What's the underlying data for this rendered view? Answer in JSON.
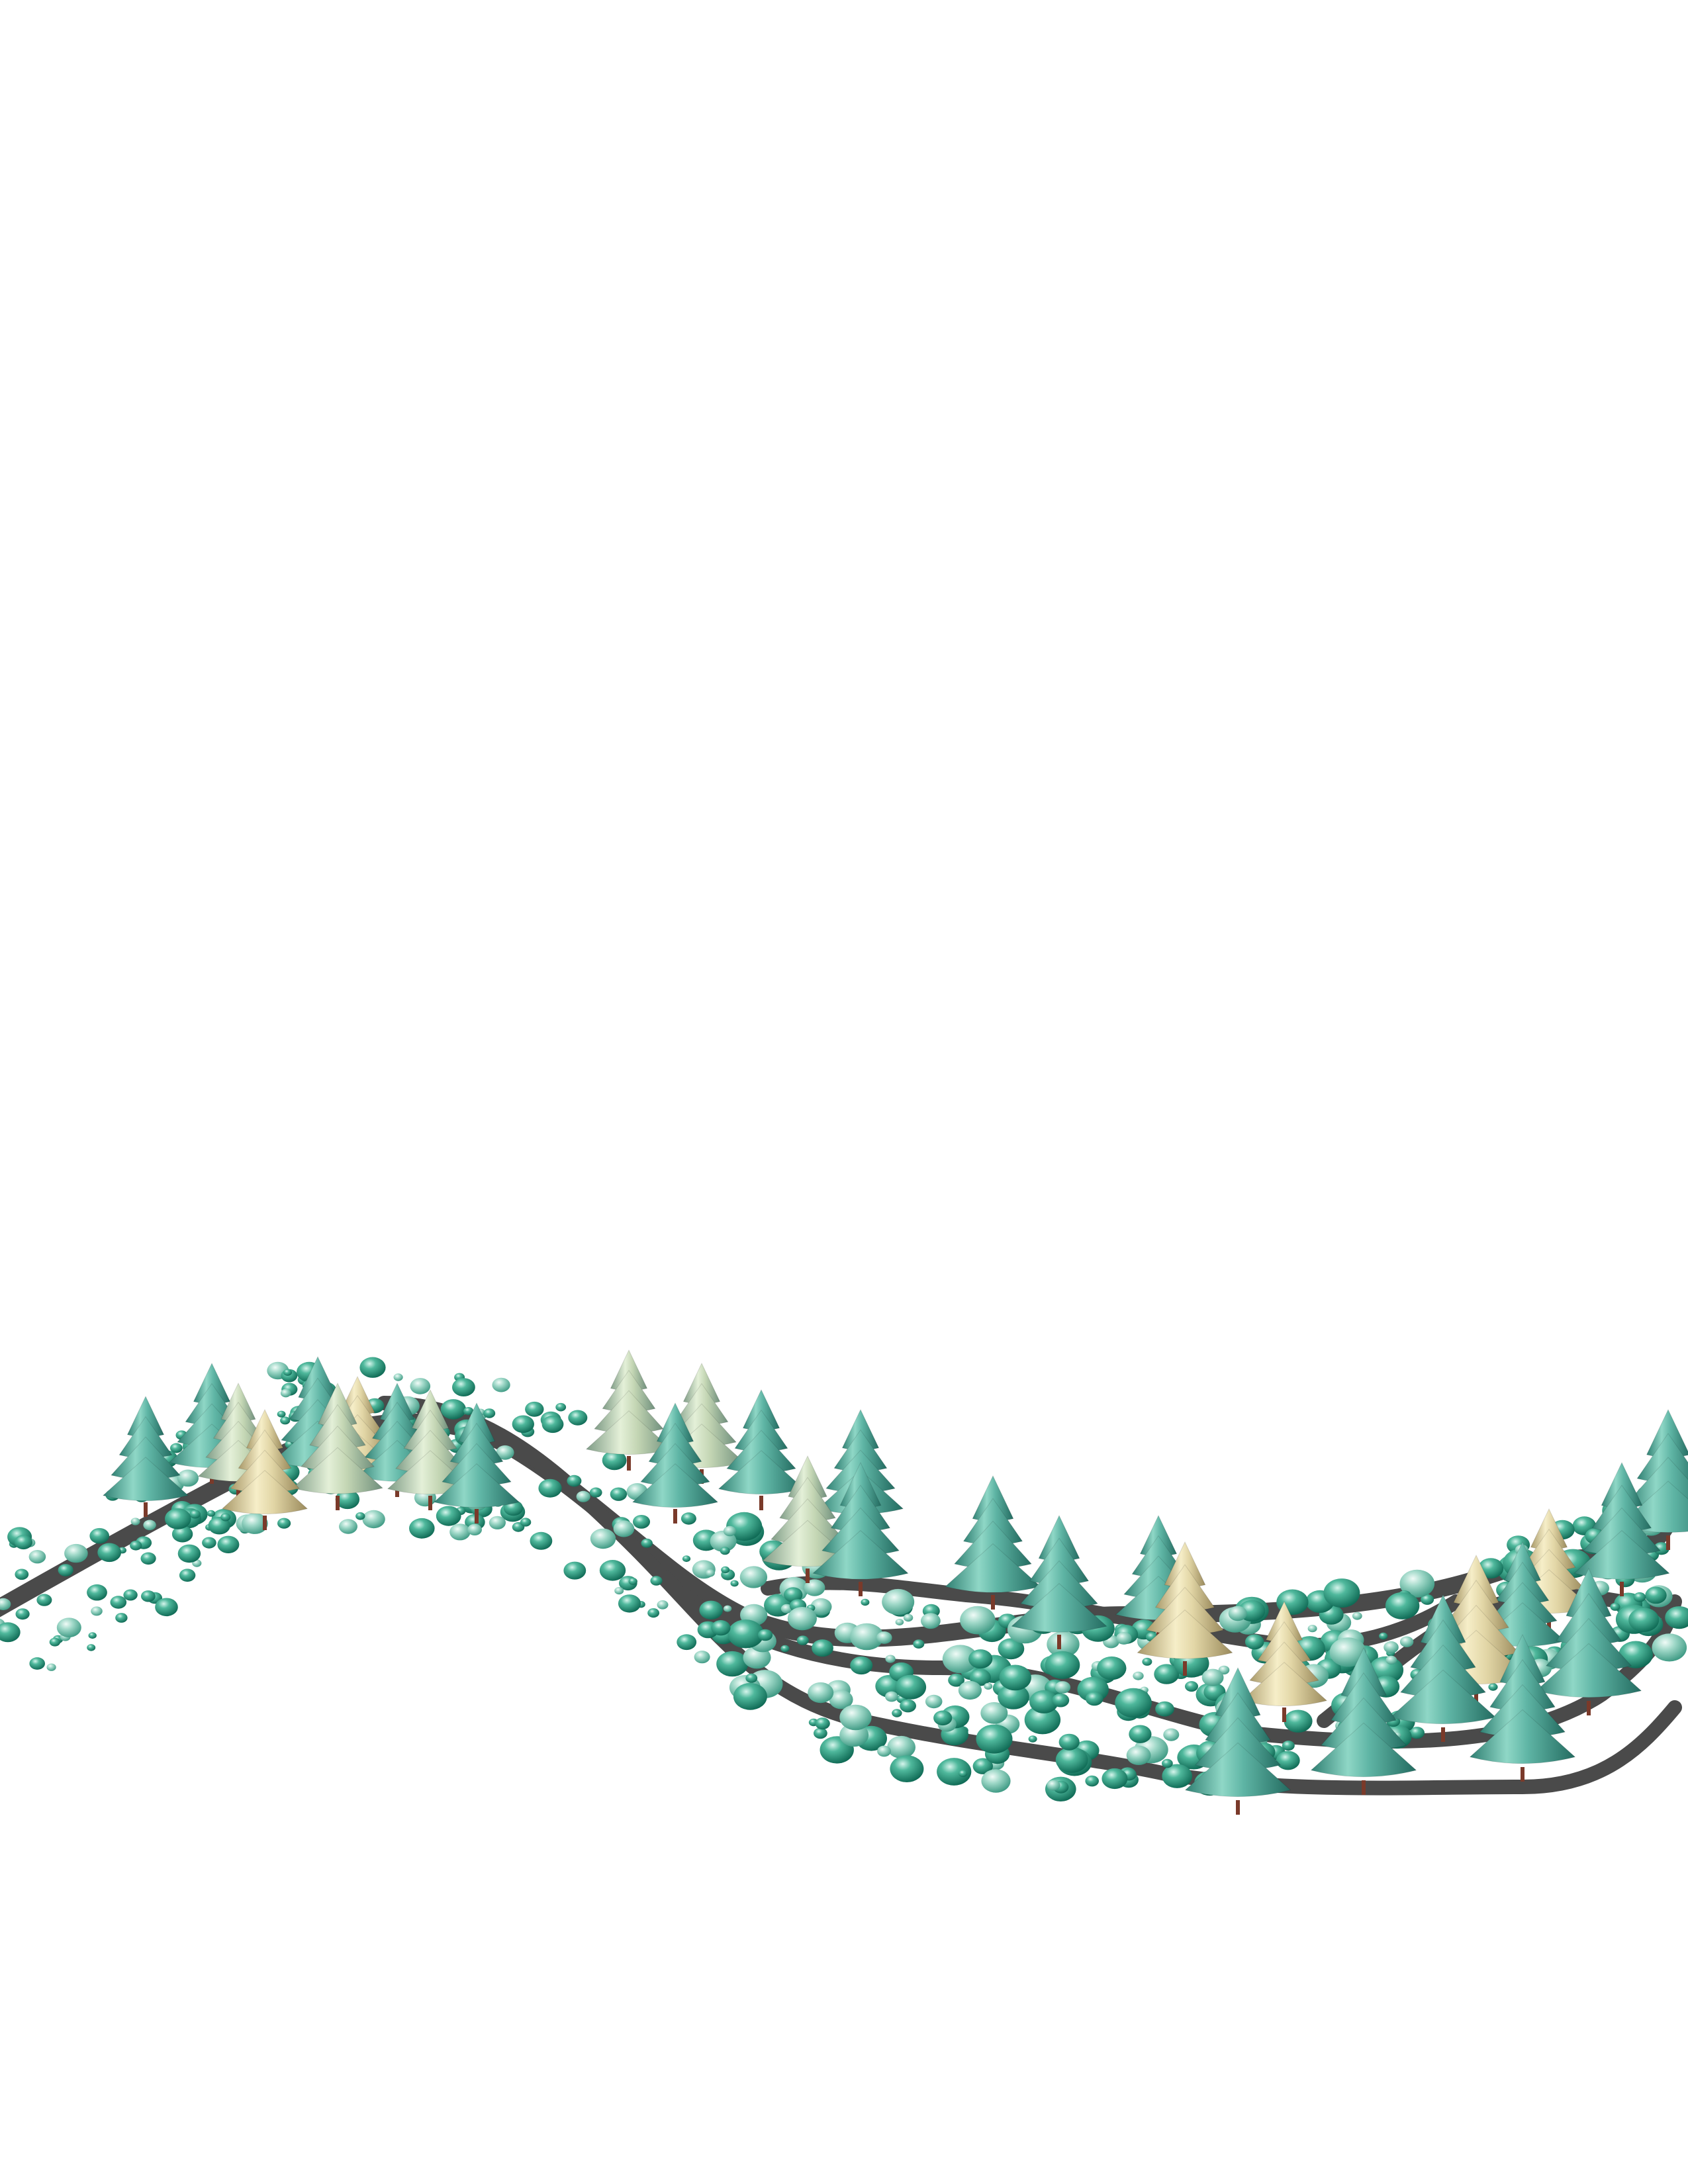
{
  "scene": {
    "subject": "winter-forest-hills",
    "colors": {
      "background": "#ffffff",
      "road": "#4a4a4a",
      "teal_tree": "#5fb5a5",
      "teal_tree_dark": "#2f7f72",
      "cream_tree": "#e2d6a6",
      "sage_tree": "#c4d6b4",
      "bush": "#2a9a7f",
      "bush_light": "#8fd1bf",
      "trunk": "#7a3a2a"
    }
  }
}
